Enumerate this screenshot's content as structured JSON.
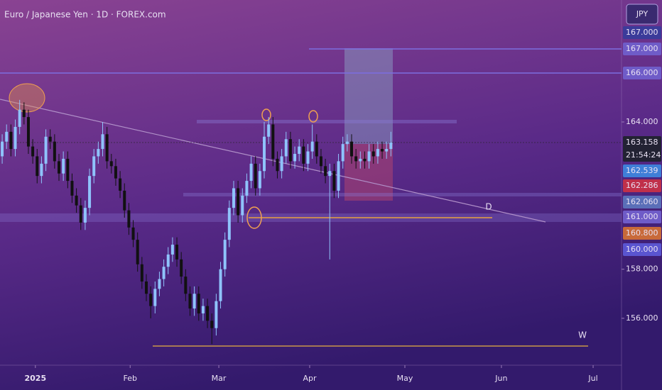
{
  "chart_data": {
    "type": "candlestick",
    "title": "Euro / Japanese Yen · 1D · FOREX.com",
    "currency": "JPY",
    "up_color": "#8fc3fb",
    "down_color": "#111111",
    "candles": {
      "open": [
        162.6,
        163.2,
        163.6,
        162.9,
        163.8,
        164.5,
        164.2,
        163.0,
        162.6,
        161.8,
        162.3,
        163.4,
        163.2,
        162.4,
        161.9,
        162.5,
        161.6,
        161.0,
        160.6,
        159.9,
        160.5,
        161.8,
        162.6,
        162.9,
        163.5,
        162.4,
        162.2,
        161.7,
        161.2,
        160.4,
        159.7,
        159.2,
        158.2,
        157.5,
        157.0,
        156.5,
        157.2,
        157.6,
        158.1,
        158.6,
        159.0,
        158.4,
        157.7,
        157.0,
        156.4,
        157.0,
        156.2,
        156.5,
        155.9,
        155.6,
        156.7,
        158.0,
        159.2,
        160.5,
        161.3,
        160.2,
        161.0,
        161.6,
        162.3,
        161.3,
        162.0,
        163.4,
        163.9,
        162.5,
        162.0,
        162.6,
        163.3,
        162.4,
        162.7,
        163.0,
        162.3,
        162.8,
        163.2,
        162.6,
        162.2,
        161.8,
        162.0,
        161.2,
        162.4,
        163.1,
        163.2,
        162.6,
        162.4,
        162.5,
        162.4,
        162.8,
        162.6,
        162.9,
        162.8,
        162.9
      ],
      "high": [
        163.5,
        163.9,
        163.9,
        164.1,
        164.9,
        164.8,
        164.5,
        163.3,
        162.9,
        162.6,
        163.7,
        163.7,
        163.5,
        162.7,
        162.8,
        162.8,
        161.9,
        161.3,
        160.9,
        160.8,
        162.1,
        162.9,
        163.2,
        164.0,
        163.8,
        162.7,
        162.5,
        162.0,
        161.5,
        160.7,
        160.0,
        159.5,
        158.5,
        157.8,
        157.3,
        157.5,
        157.9,
        158.4,
        158.9,
        159.3,
        159.3,
        158.7,
        158.0,
        157.3,
        157.3,
        157.3,
        156.8,
        156.8,
        156.2,
        157.0,
        158.3,
        159.5,
        160.8,
        161.6,
        161.6,
        161.3,
        161.9,
        162.6,
        162.6,
        162.3,
        164.0,
        164.2,
        164.2,
        162.8,
        162.9,
        163.6,
        163.6,
        163.0,
        163.3,
        163.3,
        163.1,
        163.9,
        163.5,
        162.9,
        162.5,
        162.3,
        162.3,
        162.7,
        163.4,
        163.5,
        163.5,
        162.9,
        162.8,
        162.8,
        163.1,
        163.1,
        163.2,
        163.2,
        163.2,
        163.6
      ],
      "low": [
        162.3,
        162.9,
        162.6,
        162.6,
        163.5,
        163.9,
        162.7,
        162.3,
        161.5,
        161.5,
        162.0,
        162.9,
        162.1,
        161.6,
        161.6,
        161.3,
        160.7,
        160.3,
        159.6,
        159.6,
        160.2,
        161.5,
        162.3,
        162.6,
        162.1,
        161.9,
        161.4,
        160.9,
        160.1,
        159.4,
        158.9,
        157.9,
        157.2,
        156.7,
        156.0,
        156.2,
        156.9,
        157.3,
        157.8,
        158.3,
        158.1,
        157.4,
        156.7,
        156.1,
        156.1,
        155.9,
        155.9,
        155.6,
        154.95,
        155.3,
        156.4,
        157.7,
        158.9,
        160.2,
        159.9,
        159.9,
        160.7,
        161.3,
        161.0,
        161.0,
        161.7,
        163.1,
        162.2,
        161.7,
        161.7,
        162.3,
        162.1,
        162.1,
        162.4,
        162.0,
        162.0,
        162.5,
        162.3,
        161.9,
        161.5,
        158.4,
        160.9,
        160.9,
        162.1,
        162.8,
        162.3,
        162.1,
        162.1,
        162.1,
        162.1,
        162.3,
        162.3,
        162.5,
        162.5,
        162.6
      ],
      "close": [
        163.2,
        163.6,
        162.9,
        163.8,
        164.5,
        164.2,
        163.0,
        162.6,
        161.8,
        162.3,
        163.4,
        163.2,
        162.4,
        161.9,
        162.5,
        161.6,
        161.0,
        160.6,
        159.9,
        160.5,
        161.8,
        162.6,
        162.9,
        163.5,
        162.4,
        162.2,
        161.7,
        161.2,
        160.4,
        159.7,
        159.2,
        158.2,
        157.5,
        157.0,
        156.5,
        157.2,
        157.6,
        158.1,
        158.6,
        159.0,
        158.4,
        157.7,
        157.0,
        156.4,
        157.0,
        156.2,
        156.5,
        155.9,
        155.6,
        156.7,
        158.0,
        159.2,
        160.5,
        161.3,
        160.2,
        161.0,
        161.6,
        162.3,
        161.3,
        162.0,
        163.4,
        163.9,
        162.5,
        162.0,
        162.6,
        163.3,
        162.4,
        162.7,
        163.0,
        162.3,
        162.8,
        163.2,
        162.6,
        162.2,
        161.8,
        162.0,
        161.2,
        162.4,
        163.1,
        163.2,
        162.6,
        162.4,
        162.5,
        162.4,
        162.8,
        162.6,
        162.9,
        162.8,
        162.9,
        163.158
      ]
    },
    "xlim": [
      -0.5,
      141.8
    ],
    "xticks": [
      {
        "value": 7.6,
        "label": "2025"
      },
      {
        "value": 29.3,
        "label": "Feb"
      },
      {
        "value": 49.6,
        "label": "Mar"
      },
      {
        "value": 70.4,
        "label": "Apr"
      },
      {
        "value": 92.2,
        "label": "May"
      },
      {
        "value": 114.3,
        "label": "Jun"
      },
      {
        "value": 135.3,
        "label": "Jul"
      }
    ],
    "ylim": [
      154.09,
      168.97
    ],
    "yticks": [
      {
        "value": 156,
        "label": "156.000"
      },
      {
        "value": 158,
        "label": "158.000"
      },
      {
        "value": 164,
        "label": "164.000"
      }
    ],
    "price_labels": [
      {
        "label": "167.000",
        "color": "#3b3b9a"
      },
      {
        "label": "167.000",
        "color": "#6f5cc8"
      },
      {
        "label": "166.000",
        "color": "#6f5cc8"
      },
      {
        "label": "163.158",
        "color": "#222233"
      },
      {
        "label": "162.539",
        "color": "#3f7fd8"
      },
      {
        "label": "162.286",
        "color": "#c0304a"
      },
      {
        "label": "162.060",
        "color": "#5a6fb8"
      },
      {
        "label": "161.000",
        "color": "#6f5cc8"
      },
      {
        "label": "160.800",
        "color": "#c86a3a"
      },
      {
        "label": "160.000",
        "color": "#5a55d0"
      }
    ],
    "countdown": "21:54:24",
    "annotations": [
      "D",
      "W"
    ]
  }
}
